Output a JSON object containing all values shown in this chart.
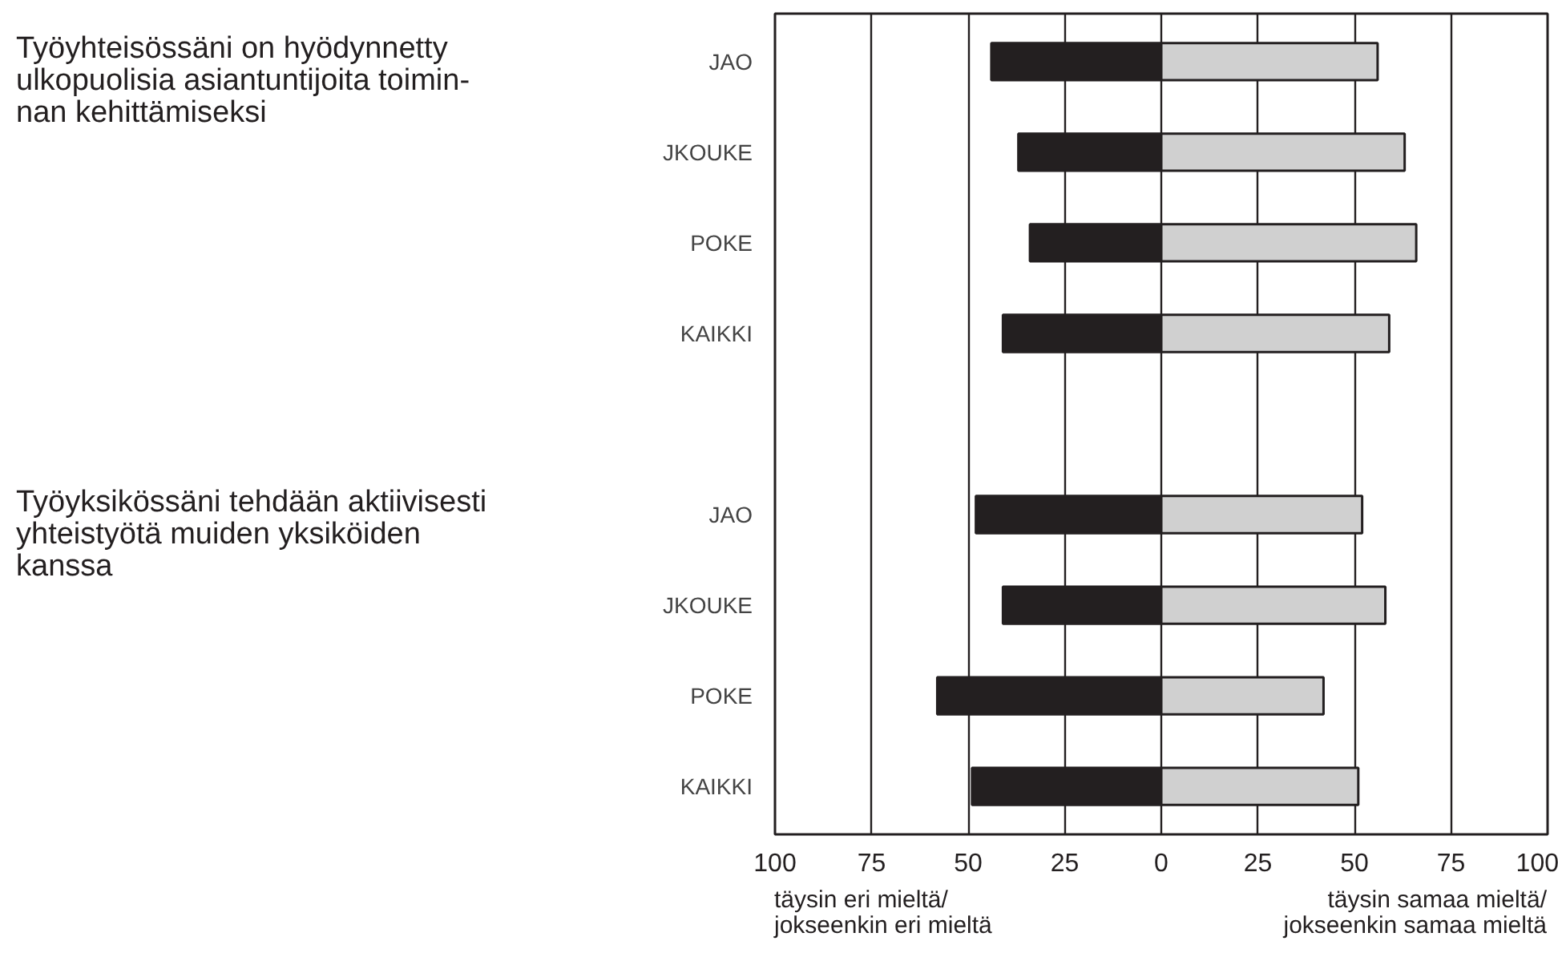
{
  "chart_data": {
    "type": "bar",
    "orientation": "horizontal",
    "stacked": true,
    "categories": [
      "JAO",
      "JKOUKE",
      "POKE",
      "KAIKKI",
      null,
      "JAO",
      "JKOUKE",
      "POKE",
      "KAIKKI"
    ],
    "series": [
      {
        "color": "#231f20",
        "values": [
          -44,
          -37,
          -34,
          -41,
          null,
          -48,
          -41,
          -58,
          -49
        ]
      },
      {
        "color": "#d0d0d0",
        "values": [
          56,
          63,
          66,
          59,
          null,
          52,
          58,
          42,
          51
        ]
      }
    ],
    "xlim": [
      -100,
      100
    ],
    "xticks": [
      {
        "value": -100,
        "label": "100"
      },
      {
        "value": -75,
        "label": "75"
      },
      {
        "value": -50,
        "label": "50"
      },
      {
        "value": -25,
        "label": "25"
      },
      0,
      25,
      50,
      75,
      100
    ],
    "grid": "x",
    "annotations": [
      "Työyhteisössäni on hyödynnetty\nulkopuolisia asiantuntijoita toimin-\nnan kehittämiseksi",
      "Työyksikössäni tehdään aktiivisesti\nyhteistyötä muiden yksiköiden\nkanssa",
      "täysin eri mieltä/\njokseenkin eri mieltä",
      "täysin samaa mieltä/\njokseenkin samaa mieltä"
    ]
  }
}
